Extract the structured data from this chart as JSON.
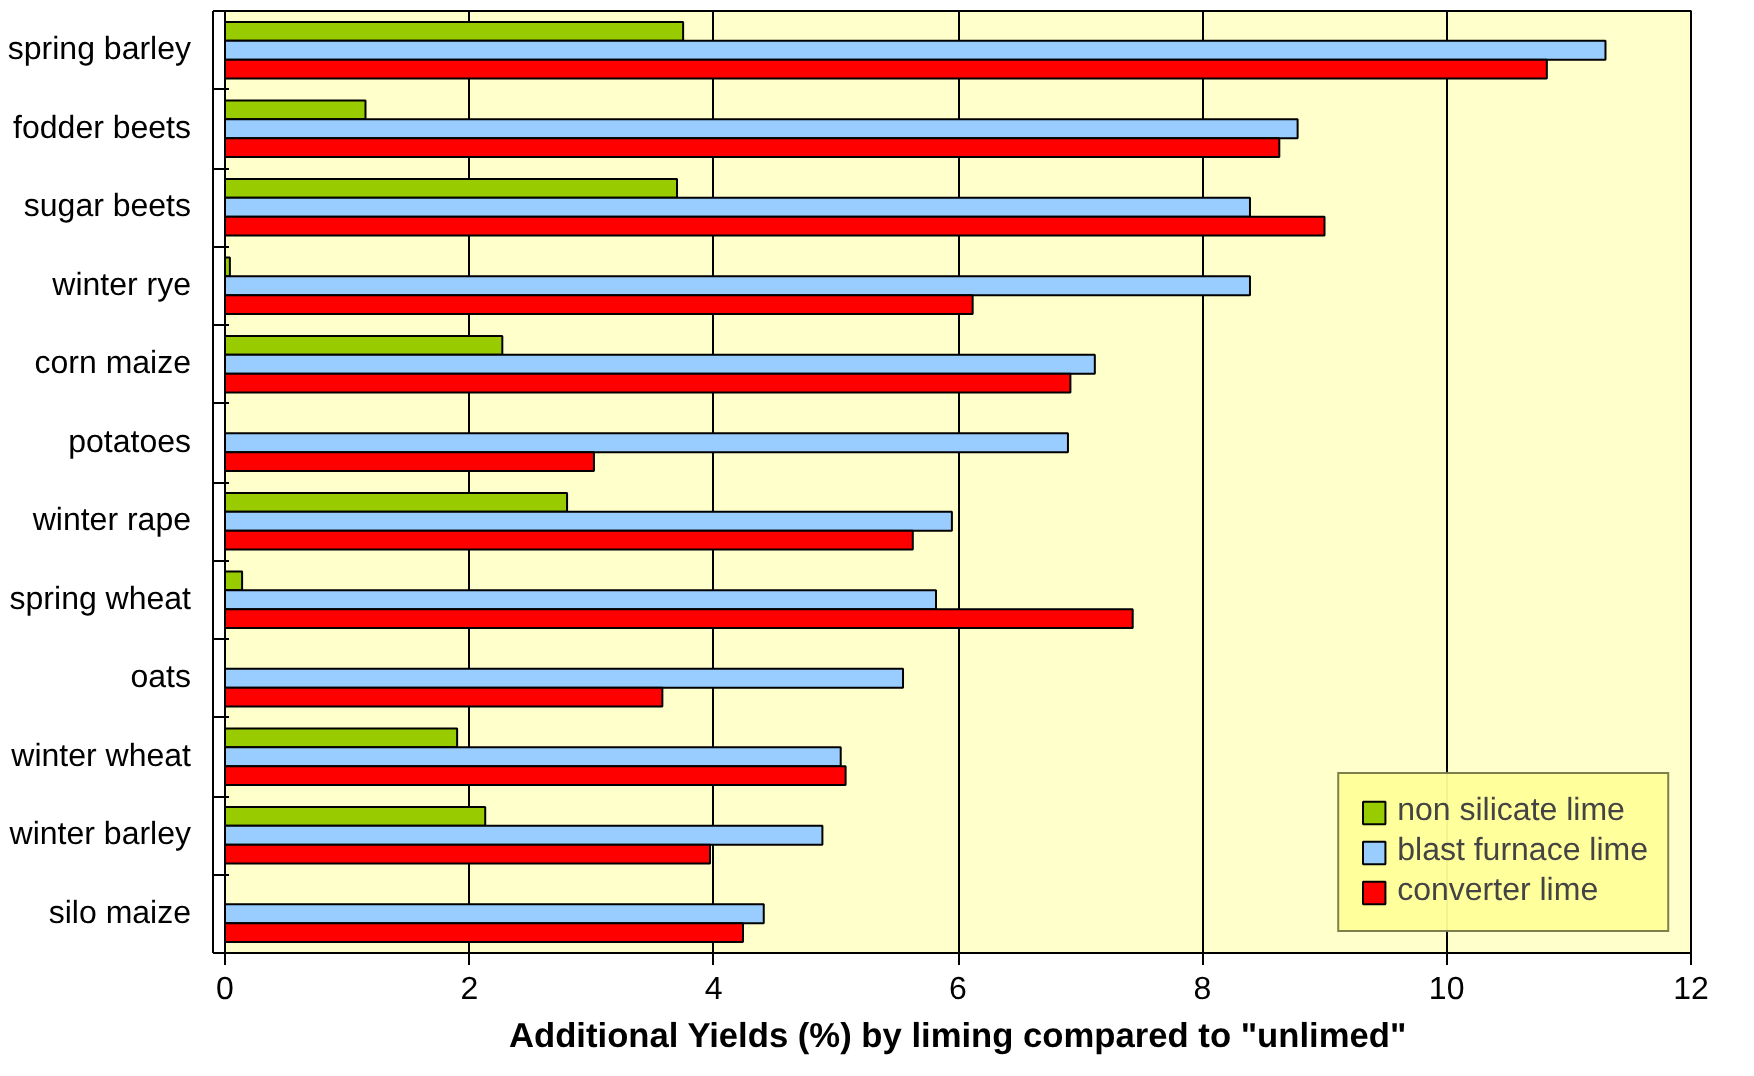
{
  "chart_data": {
    "type": "bar",
    "orientation": "horizontal",
    "xlabel": "Additional Yields (%) by liming compared to \"unlimed\"",
    "categories": [
      "spring barley",
      "fodder beets",
      "sugar beets",
      "winter rye",
      "corn maize",
      "potatoes",
      "winter rape",
      "spring wheat",
      "oats",
      "winter wheat",
      "winter barley",
      "silo maize"
    ],
    "series": [
      {
        "name": "non silicate lime",
        "color": "#99cc00",
        "values": [
          3.75,
          1.15,
          3.7,
          0.04,
          2.27,
          null,
          2.8,
          0.14,
          null,
          1.9,
          2.13,
          null
        ]
      },
      {
        "name": "blast furnace lime",
        "color": "#99ccff",
        "values": [
          11.3,
          8.78,
          8.39,
          8.39,
          7.12,
          6.9,
          5.95,
          5.82,
          5.55,
          5.04,
          4.89,
          4.41
        ]
      },
      {
        "name": "converter lime",
        "color": "#ff0000",
        "values": [
          10.82,
          8.63,
          9.0,
          6.12,
          6.92,
          3.02,
          5.63,
          7.43,
          3.58,
          5.08,
          3.97,
          4.24
        ]
      }
    ],
    "xlim": [
      0,
      12
    ],
    "xticks": [
      0,
      2,
      4,
      6,
      8,
      10,
      12
    ],
    "grid": "x",
    "legend": "bottom right"
  }
}
